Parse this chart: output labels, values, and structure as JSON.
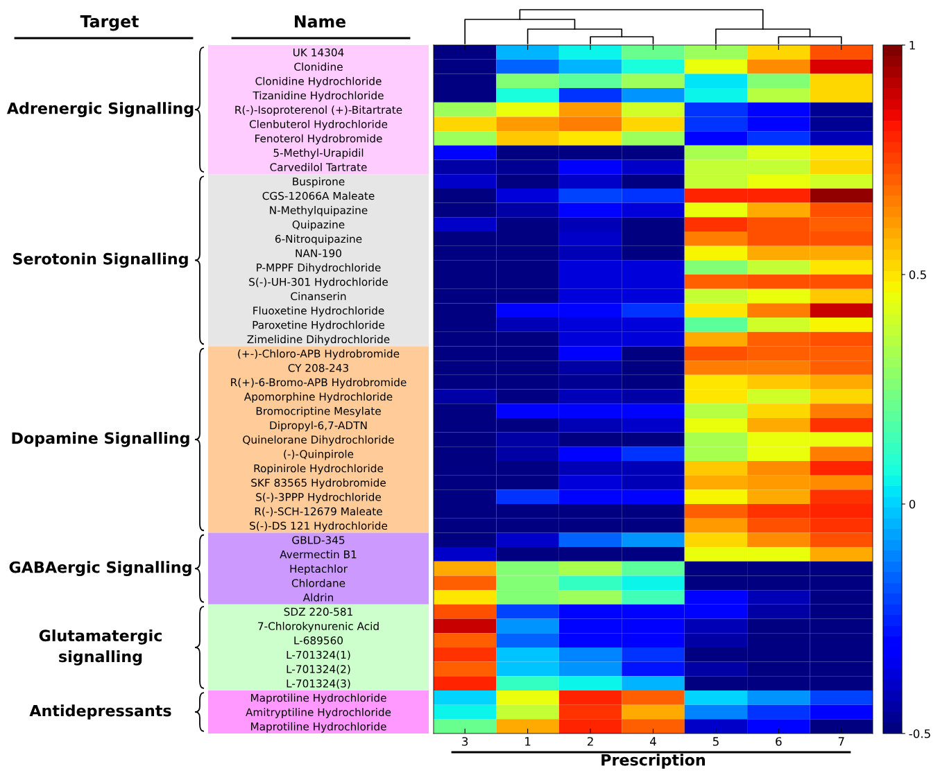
{
  "chart_data": {
    "type": "heatmap",
    "xlabel": "Prescription",
    "categories": [
      "3",
      "1",
      "2",
      "4",
      "5",
      "6",
      "7"
    ],
    "y_categories": [
      "UK 14304",
      "Clonidine",
      "Clonidine Hydrochloride",
      "Tizanidine Hydrochloride",
      "R(-)-Isoproterenol (+)-Bitartrate",
      "Clenbuterol Hydrochloride",
      "Fenoterol Hydrobromide",
      "5-Methyl-Urapidil",
      "Carvedilol Tartrate",
      "Buspirone",
      "CGS-12066A Maleate",
      "N-Methylquipazine",
      "Quipazine",
      "6-Nitroquipazine",
      "NAN-190",
      "P-MPPF Dihydrochloride",
      "S(-)-UH-301 Hydrochloride",
      "Cinanserin",
      "Fluoxetine Hydrochloride",
      "Paroxetine Hydrochloride",
      "Zimelidine Dihydrochloride",
      "(+-)-Chloro-APB Hydrobromide",
      "CY 208-243",
      "R(+)-6-Bromo-APB Hydrobromide",
      "Apomorphine Hydrochloride",
      "Bromocriptine Mesylate",
      "Dipropyl-6,7-ADTN",
      "Quinelorane Dihydrochloride",
      "(-)-Quinpirole",
      "Ropinirole Hydrochloride",
      "SKF 83565 Hydrobromide",
      "S(-)-3PPP Hydrochloride",
      "R(-)-SCH-12679 Maleate",
      "S(-)-DS 121 Hydrochloride",
      "GBLD-345",
      "Avermectin B1",
      "Heptachlor",
      "Chlordane",
      "Aldrin",
      "SDZ 220-581",
      "7-Chlorokynurenic Acid",
      "L-689560",
      "L-701324(1)",
      "L-701324(2)",
      "L-701324(3)",
      "Maprotiline Hydrochloride",
      "Amitryptiline Hydrochloride",
      "Maprotiline Hydrochloride"
    ],
    "cells": [
      [
        -0.5,
        -0.05,
        0.06,
        0.22,
        0.32,
        0.53,
        0.74
      ],
      [
        -0.5,
        -0.15,
        -0.05,
        0.08,
        0.44,
        0.64,
        0.88
      ],
      [
        -0.5,
        0.27,
        0.19,
        0.32,
        0.02,
        0.25,
        0.52
      ],
      [
        -0.5,
        0.08,
        -0.22,
        -0.1,
        0.06,
        0.36,
        0.52
      ],
      [
        0.32,
        0.44,
        0.62,
        0.41,
        -0.22,
        -0.31,
        -0.46
      ],
      [
        0.53,
        0.62,
        0.67,
        0.52,
        -0.24,
        -0.31,
        -0.47
      ],
      [
        0.32,
        0.55,
        0.5,
        0.32,
        -0.29,
        -0.24,
        -0.42
      ],
      [
        -0.29,
        -0.48,
        -0.48,
        -0.48,
        0.34,
        0.42,
        0.49
      ],
      [
        -0.45,
        -0.46,
        -0.33,
        -0.39,
        0.39,
        0.39,
        0.53
      ],
      [
        -0.39,
        -0.48,
        -0.4,
        -0.48,
        0.39,
        0.44,
        0.41
      ],
      [
        -0.48,
        -0.36,
        -0.2,
        -0.24,
        0.81,
        0.81,
        0.96
      ],
      [
        -0.48,
        -0.45,
        -0.31,
        -0.36,
        0.44,
        0.6,
        0.72
      ],
      [
        -0.4,
        -0.48,
        -0.41,
        -0.5,
        0.77,
        0.74,
        0.7
      ],
      [
        -0.48,
        -0.48,
        -0.39,
        -0.48,
        0.66,
        0.72,
        0.74
      ],
      [
        -0.48,
        -0.48,
        -0.41,
        -0.5,
        0.47,
        0.58,
        0.58
      ],
      [
        -0.48,
        -0.48,
        -0.37,
        -0.37,
        0.27,
        0.39,
        0.5
      ],
      [
        -0.48,
        -0.48,
        -0.37,
        -0.37,
        0.7,
        0.74,
        0.74
      ],
      [
        -0.48,
        -0.48,
        -0.37,
        -0.37,
        0.39,
        0.45,
        0.55
      ],
      [
        -0.48,
        -0.29,
        -0.29,
        -0.22,
        0.5,
        0.67,
        0.9
      ],
      [
        -0.48,
        -0.41,
        -0.36,
        -0.36,
        0.19,
        0.41,
        0.47
      ],
      [
        -0.48,
        -0.48,
        -0.36,
        -0.36,
        0.6,
        0.7,
        0.72
      ],
      [
        -0.48,
        -0.48,
        -0.33,
        -0.48,
        0.74,
        0.7,
        0.7
      ],
      [
        -0.48,
        -0.48,
        -0.44,
        -0.5,
        0.67,
        0.67,
        0.7
      ],
      [
        -0.48,
        -0.48,
        -0.46,
        -0.5,
        0.5,
        0.55,
        0.6
      ],
      [
        -0.45,
        -0.48,
        -0.41,
        -0.44,
        0.5,
        0.41,
        0.53
      ],
      [
        -0.48,
        -0.29,
        -0.31,
        -0.31,
        0.36,
        0.53,
        0.67
      ],
      [
        -0.48,
        -0.48,
        -0.42,
        -0.39,
        0.45,
        0.58,
        0.77
      ],
      [
        -0.48,
        -0.45,
        -0.48,
        -0.5,
        0.34,
        0.45,
        0.44
      ],
      [
        -0.48,
        -0.45,
        -0.29,
        -0.24,
        0.34,
        0.45,
        0.67
      ],
      [
        -0.48,
        -0.48,
        -0.42,
        -0.42,
        0.55,
        0.64,
        0.81
      ],
      [
        -0.48,
        -0.48,
        -0.36,
        -0.42,
        0.58,
        0.62,
        0.64
      ],
      [
        -0.48,
        -0.24,
        -0.29,
        -0.29,
        0.47,
        0.6,
        0.77
      ],
      [
        -0.48,
        -0.48,
        -0.48,
        -0.48,
        0.7,
        0.77,
        0.81
      ],
      [
        -0.48,
        -0.48,
        -0.48,
        -0.48,
        0.62,
        0.72,
        0.77
      ],
      [
        -0.48,
        -0.39,
        -0.15,
        -0.08,
        0.53,
        0.64,
        0.74
      ],
      [
        -0.39,
        -0.48,
        -0.48,
        -0.48,
        0.44,
        0.44,
        0.58
      ],
      [
        0.6,
        0.25,
        0.34,
        0.19,
        -0.48,
        -0.48,
        -0.48
      ],
      [
        0.7,
        0.25,
        0.12,
        0.06,
        -0.48,
        -0.48,
        -0.48
      ],
      [
        0.5,
        0.27,
        0.32,
        0.15,
        -0.31,
        -0.41,
        -0.48
      ],
      [
        0.72,
        -0.2,
        -0.29,
        -0.31,
        -0.31,
        -0.45,
        -0.48
      ],
      [
        0.9,
        -0.1,
        -0.29,
        -0.33,
        -0.42,
        -0.48,
        -0.48
      ],
      [
        0.7,
        -0.15,
        -0.31,
        -0.33,
        -0.44,
        -0.48,
        -0.48
      ],
      [
        0.77,
        -0.02,
        -0.12,
        -0.22,
        -0.49,
        -0.48,
        -0.48
      ],
      [
        0.7,
        -0.02,
        -0.1,
        -0.27,
        -0.45,
        -0.48,
        -0.48
      ],
      [
        0.81,
        0.12,
        0.04,
        -0.05,
        -0.48,
        -0.48,
        -0.48
      ],
      [
        0.0,
        0.44,
        0.81,
        0.7,
        0.0,
        -0.08,
        -0.2
      ],
      [
        0.06,
        0.39,
        0.77,
        0.58,
        -0.12,
        -0.22,
        -0.29
      ],
      [
        0.22,
        0.58,
        0.79,
        0.7,
        -0.4,
        -0.31,
        -0.48
      ]
    ],
    "clim": [
      -0.5,
      1
    ],
    "cticks": [
      -0.5,
      0,
      0.5,
      1
    ],
    "annotations": [
      "Target",
      "Name",
      "Adrenergic Signalling",
      "Serotonin Signalling",
      "Dopamine Signalling",
      "GABAergic Signalling",
      "Glutamatergic\nsignalling",
      "Antidepressants"
    ]
  }
}
